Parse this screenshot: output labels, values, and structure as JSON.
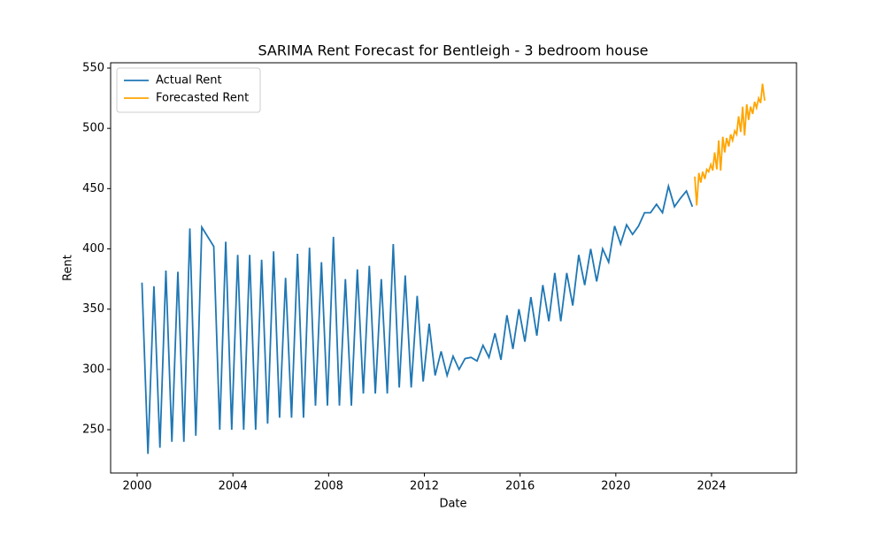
{
  "chart_data": {
    "type": "line",
    "title": "SARIMA Rent Forecast for Bentleigh - 3 bedroom house",
    "x_label": "Date",
    "y_label": "Rent",
    "series": [
      {
        "name": "Actual Rent",
        "color": "#1f77b4",
        "x": [
          2000.2,
          2000.45,
          2000.7,
          2000.95,
          2001.2,
          2001.45,
          2001.7,
          2001.95,
          2002.2,
          2002.45,
          2002.7,
          2003.2,
          2003.45,
          2003.7,
          2003.95,
          2004.2,
          2004.45,
          2004.7,
          2004.95,
          2005.2,
          2005.45,
          2005.7,
          2005.95,
          2006.2,
          2006.45,
          2006.7,
          2006.95,
          2007.2,
          2007.45,
          2007.7,
          2007.95,
          2008.2,
          2008.45,
          2008.7,
          2008.95,
          2009.2,
          2009.45,
          2009.7,
          2009.95,
          2010.2,
          2010.45,
          2010.7,
          2010.95,
          2011.2,
          2011.45,
          2011.7,
          2011.95,
          2012.2,
          2012.45,
          2012.7,
          2012.95,
          2013.2,
          2013.45,
          2013.7,
          2013.95,
          2014.2,
          2014.45,
          2014.7,
          2014.95,
          2015.2,
          2015.45,
          2015.7,
          2015.95,
          2016.2,
          2016.45,
          2016.7,
          2016.95,
          2017.2,
          2017.45,
          2017.7,
          2017.95,
          2018.2,
          2018.45,
          2018.7,
          2018.95,
          2019.2,
          2019.45,
          2019.7,
          2019.95,
          2020.2,
          2020.45,
          2020.7,
          2020.95,
          2021.2,
          2021.45,
          2021.7,
          2021.95,
          2022.2,
          2022.45,
          2022.7,
          2022.95,
          2023.2
        ],
        "values": [
          372,
          230,
          369,
          235,
          382,
          240,
          381,
          240,
          417,
          245,
          418,
          402,
          250,
          406,
          250,
          395,
          250,
          395,
          250,
          391,
          255,
          398,
          260,
          376,
          260,
          396,
          260,
          401,
          270,
          389,
          270,
          410,
          270,
          375,
          270,
          383,
          280,
          386,
          280,
          375,
          280,
          404,
          285,
          378,
          285,
          361,
          290,
          338,
          295,
          315,
          295,
          311,
          300,
          309,
          310,
          307,
          320,
          310,
          330,
          308,
          345,
          317,
          350,
          323,
          360,
          328,
          370,
          340,
          380,
          340,
          380,
          353,
          395,
          370,
          400,
          373,
          400,
          389,
          419,
          404,
          420,
          412,
          419,
          430,
          430,
          437,
          430,
          452,
          435,
          442,
          448,
          435
        ]
      },
      {
        "name": "Forecasted Rent",
        "color": "#ffa500",
        "x": [
          2023.3,
          2023.38,
          2023.47,
          2023.55,
          2023.63,
          2023.72,
          2023.8,
          2023.88,
          2023.97,
          2024.05,
          2024.13,
          2024.22,
          2024.3,
          2024.38,
          2024.47,
          2024.55,
          2024.63,
          2024.72,
          2024.8,
          2024.88,
          2024.97,
          2025.05,
          2025.13,
          2025.22,
          2025.3,
          2025.38,
          2025.47,
          2025.55,
          2025.63,
          2025.72,
          2025.8,
          2025.88,
          2025.97,
          2026.05,
          2026.13,
          2026.22
        ],
        "values": [
          460,
          436,
          463,
          455,
          464,
          458,
          466,
          464,
          470,
          465,
          480,
          466,
          490,
          465,
          493,
          480,
          492,
          485,
          495,
          490,
          498,
          495,
          510,
          497,
          518,
          494,
          520,
          507,
          518,
          512,
          522,
          517,
          525,
          521,
          537,
          523
        ]
      }
    ],
    "xlim": [
      1998.89,
      2027.55
    ],
    "xticks": [
      2000,
      2004,
      2008,
      2012,
      2016,
      2020,
      2024
    ],
    "ylim": [
      214.1,
      554.4
    ],
    "yticks": [
      250,
      300,
      350,
      400,
      450,
      500,
      550
    ],
    "legend": "upper left",
    "grid": false
  }
}
